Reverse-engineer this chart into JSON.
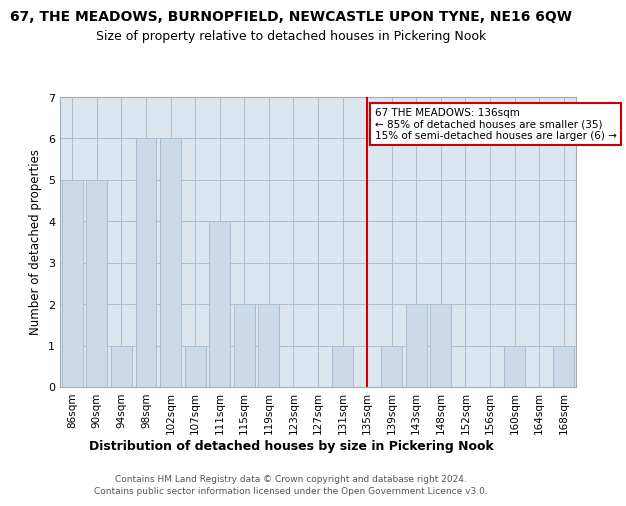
{
  "title": "67, THE MEADOWS, BURNOPFIELD, NEWCASTLE UPON TYNE, NE16 6QW",
  "subtitle": "Size of property relative to detached houses in Pickering Nook",
  "xlabel": "Distribution of detached houses by size in Pickering Nook",
  "ylabel": "Number of detached properties",
  "footnote1": "Contains HM Land Registry data © Crown copyright and database right 2024.",
  "footnote2": "Contains public sector information licensed under the Open Government Licence v3.0.",
  "categories": [
    "86sqm",
    "90sqm",
    "94sqm",
    "98sqm",
    "102sqm",
    "107sqm",
    "111sqm",
    "115sqm",
    "119sqm",
    "123sqm",
    "127sqm",
    "131sqm",
    "135sqm",
    "139sqm",
    "143sqm",
    "148sqm",
    "152sqm",
    "156sqm",
    "160sqm",
    "164sqm",
    "168sqm"
  ],
  "values": [
    5,
    5,
    1,
    6,
    6,
    1,
    4,
    2,
    2,
    0,
    0,
    1,
    0,
    1,
    2,
    2,
    0,
    0,
    1,
    0,
    1
  ],
  "bar_color": "#ccd9e8",
  "bar_edgecolor": "#a8bdd0",
  "highlight_index": 12,
  "highlight_color": "#ccd9e8",
  "vline_x": 12,
  "vline_color": "#cc0000",
  "ylim": [
    0,
    7
  ],
  "yticks": [
    0,
    1,
    2,
    3,
    4,
    5,
    6,
    7
  ],
  "annotation_text": "67 THE MEADOWS: 136sqm\n← 85% of detached houses are smaller (35)\n15% of semi-detached houses are larger (6) →",
  "annotation_box_facecolor": "#ffffff",
  "annotation_box_edgecolor": "#cc0000",
  "title_fontsize": 10,
  "subtitle_fontsize": 9,
  "axis_bg_color": "#dce6f0",
  "background_color": "#ffffff",
  "grid_color": "#b0bec8"
}
